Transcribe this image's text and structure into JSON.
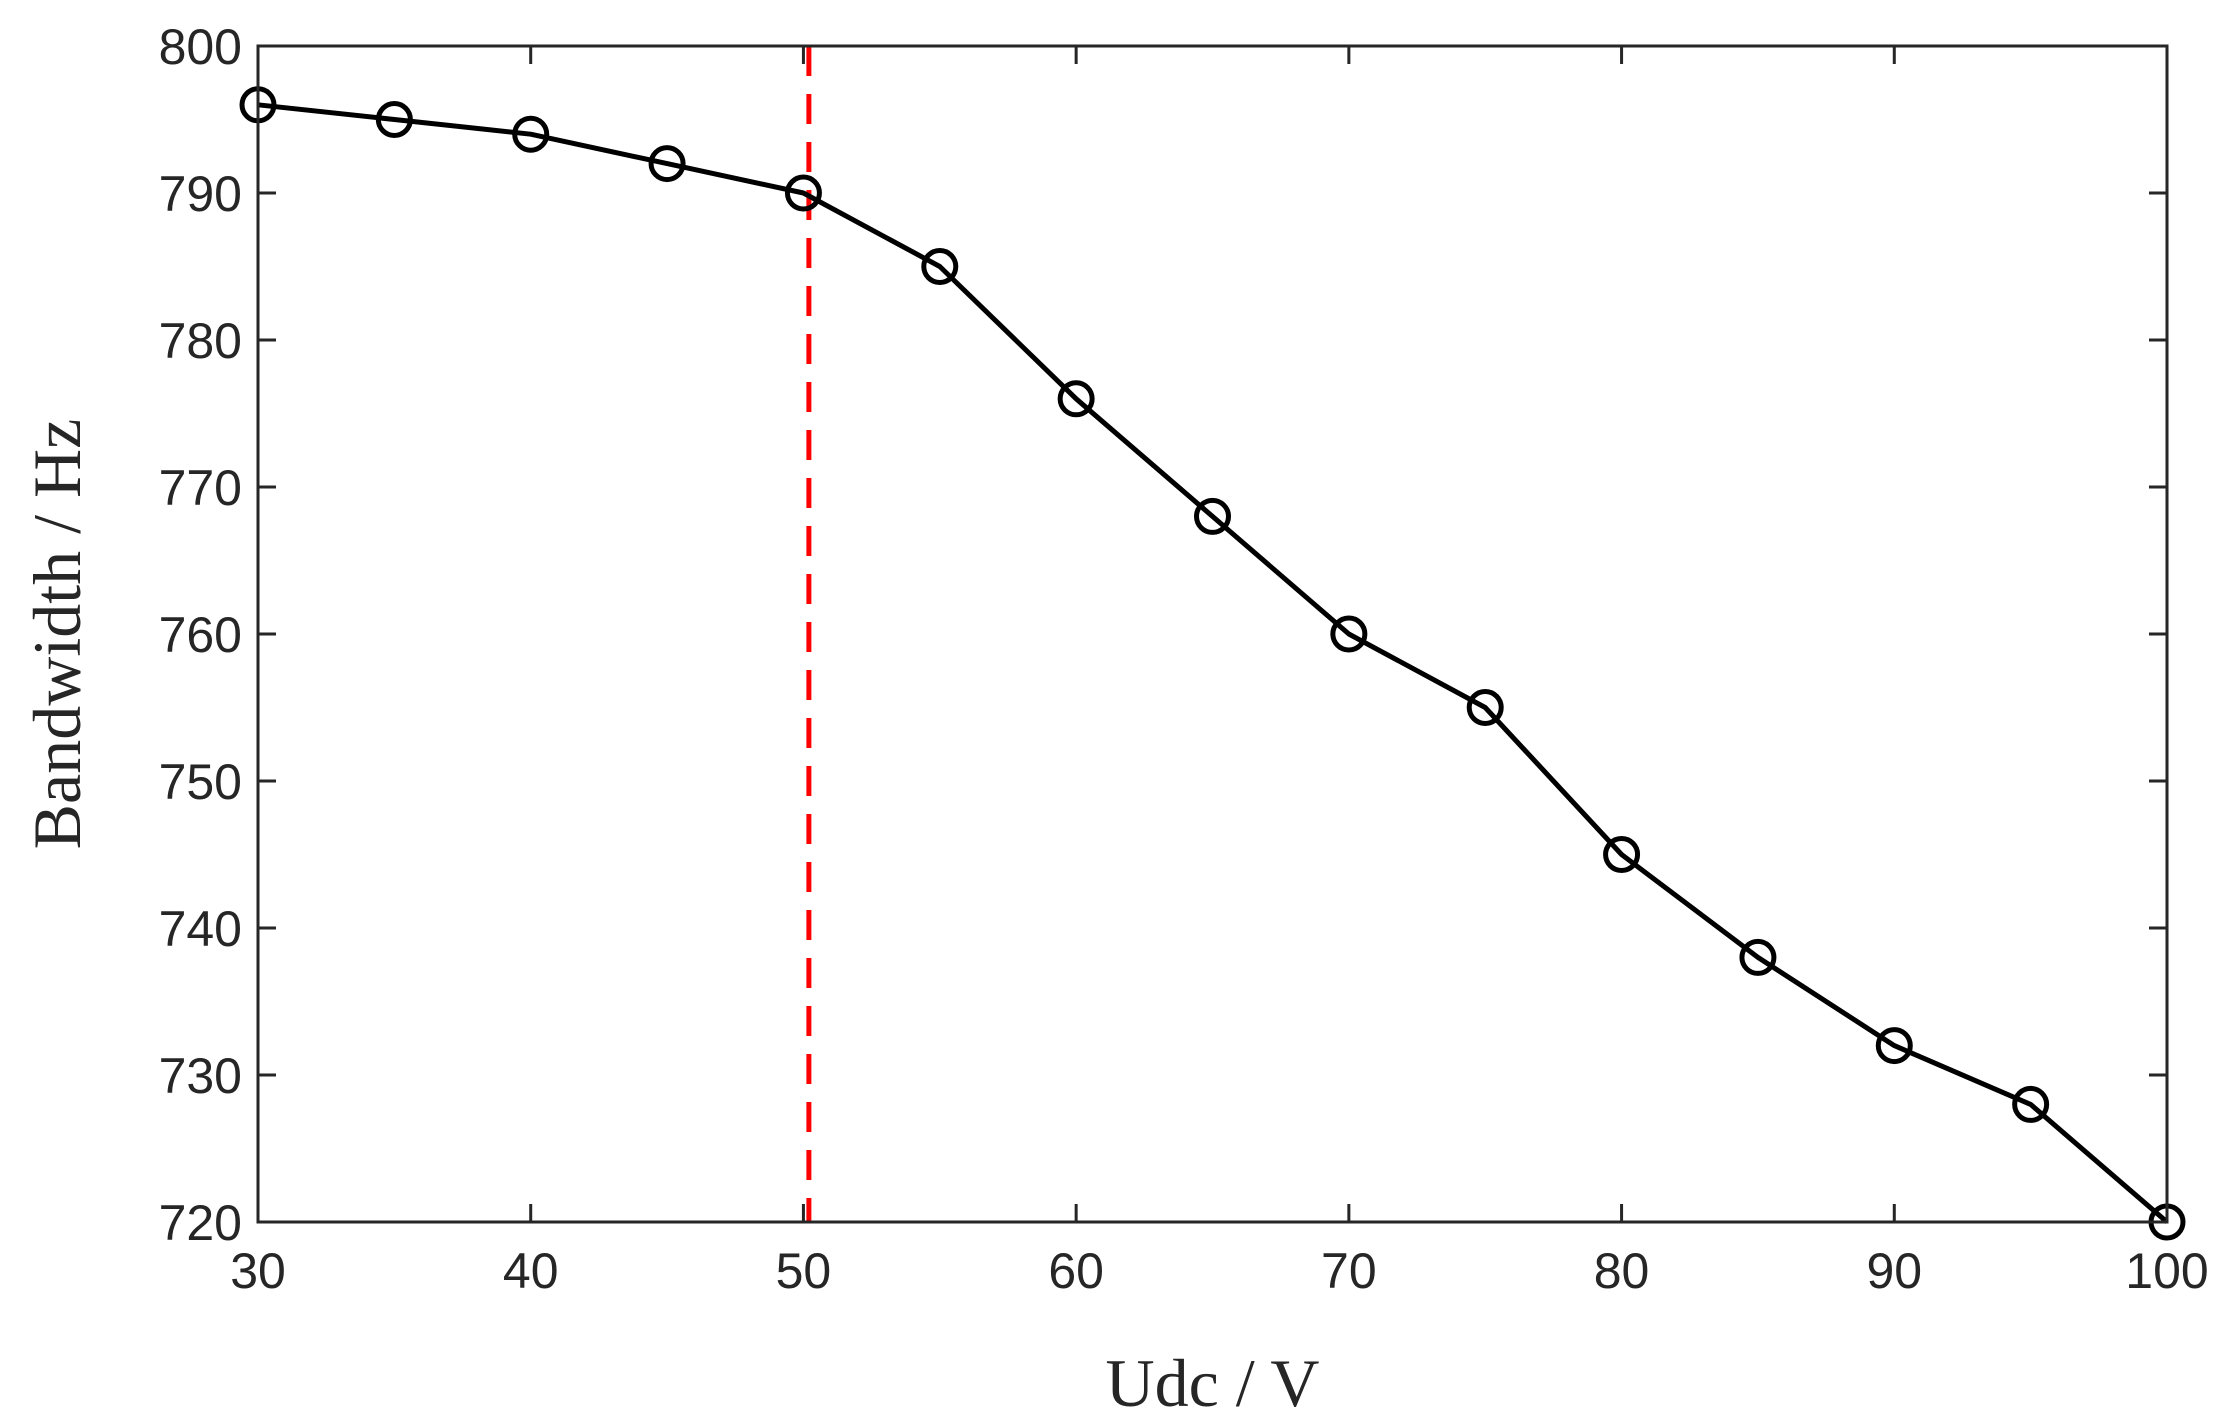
{
  "chart_data": {
    "type": "line",
    "title": "",
    "xlabel": "Udc / V",
    "ylabel": "Bandwidth / Hz",
    "xlim": [
      30,
      100
    ],
    "ylim": [
      720,
      800
    ],
    "xticks": [
      30,
      40,
      50,
      60,
      70,
      80,
      90,
      100
    ],
    "yticks": [
      720,
      730,
      740,
      750,
      760,
      770,
      780,
      790,
      800
    ],
    "grid": false,
    "legend": "none",
    "series": [
      {
        "color": "#000000",
        "marker": "circle",
        "x": [
          30,
          35,
          40,
          45,
          50,
          55,
          60,
          65,
          70,
          75,
          80,
          85,
          90,
          95,
          100
        ],
        "y": [
          796,
          795,
          794,
          792,
          790,
          785,
          776,
          768,
          760,
          755,
          745,
          738,
          732,
          728,
          720
        ]
      }
    ],
    "reference_line": {
      "orientation": "vertical",
      "x": 50.2,
      "color": "#ff0000",
      "style": "dashed"
    }
  }
}
